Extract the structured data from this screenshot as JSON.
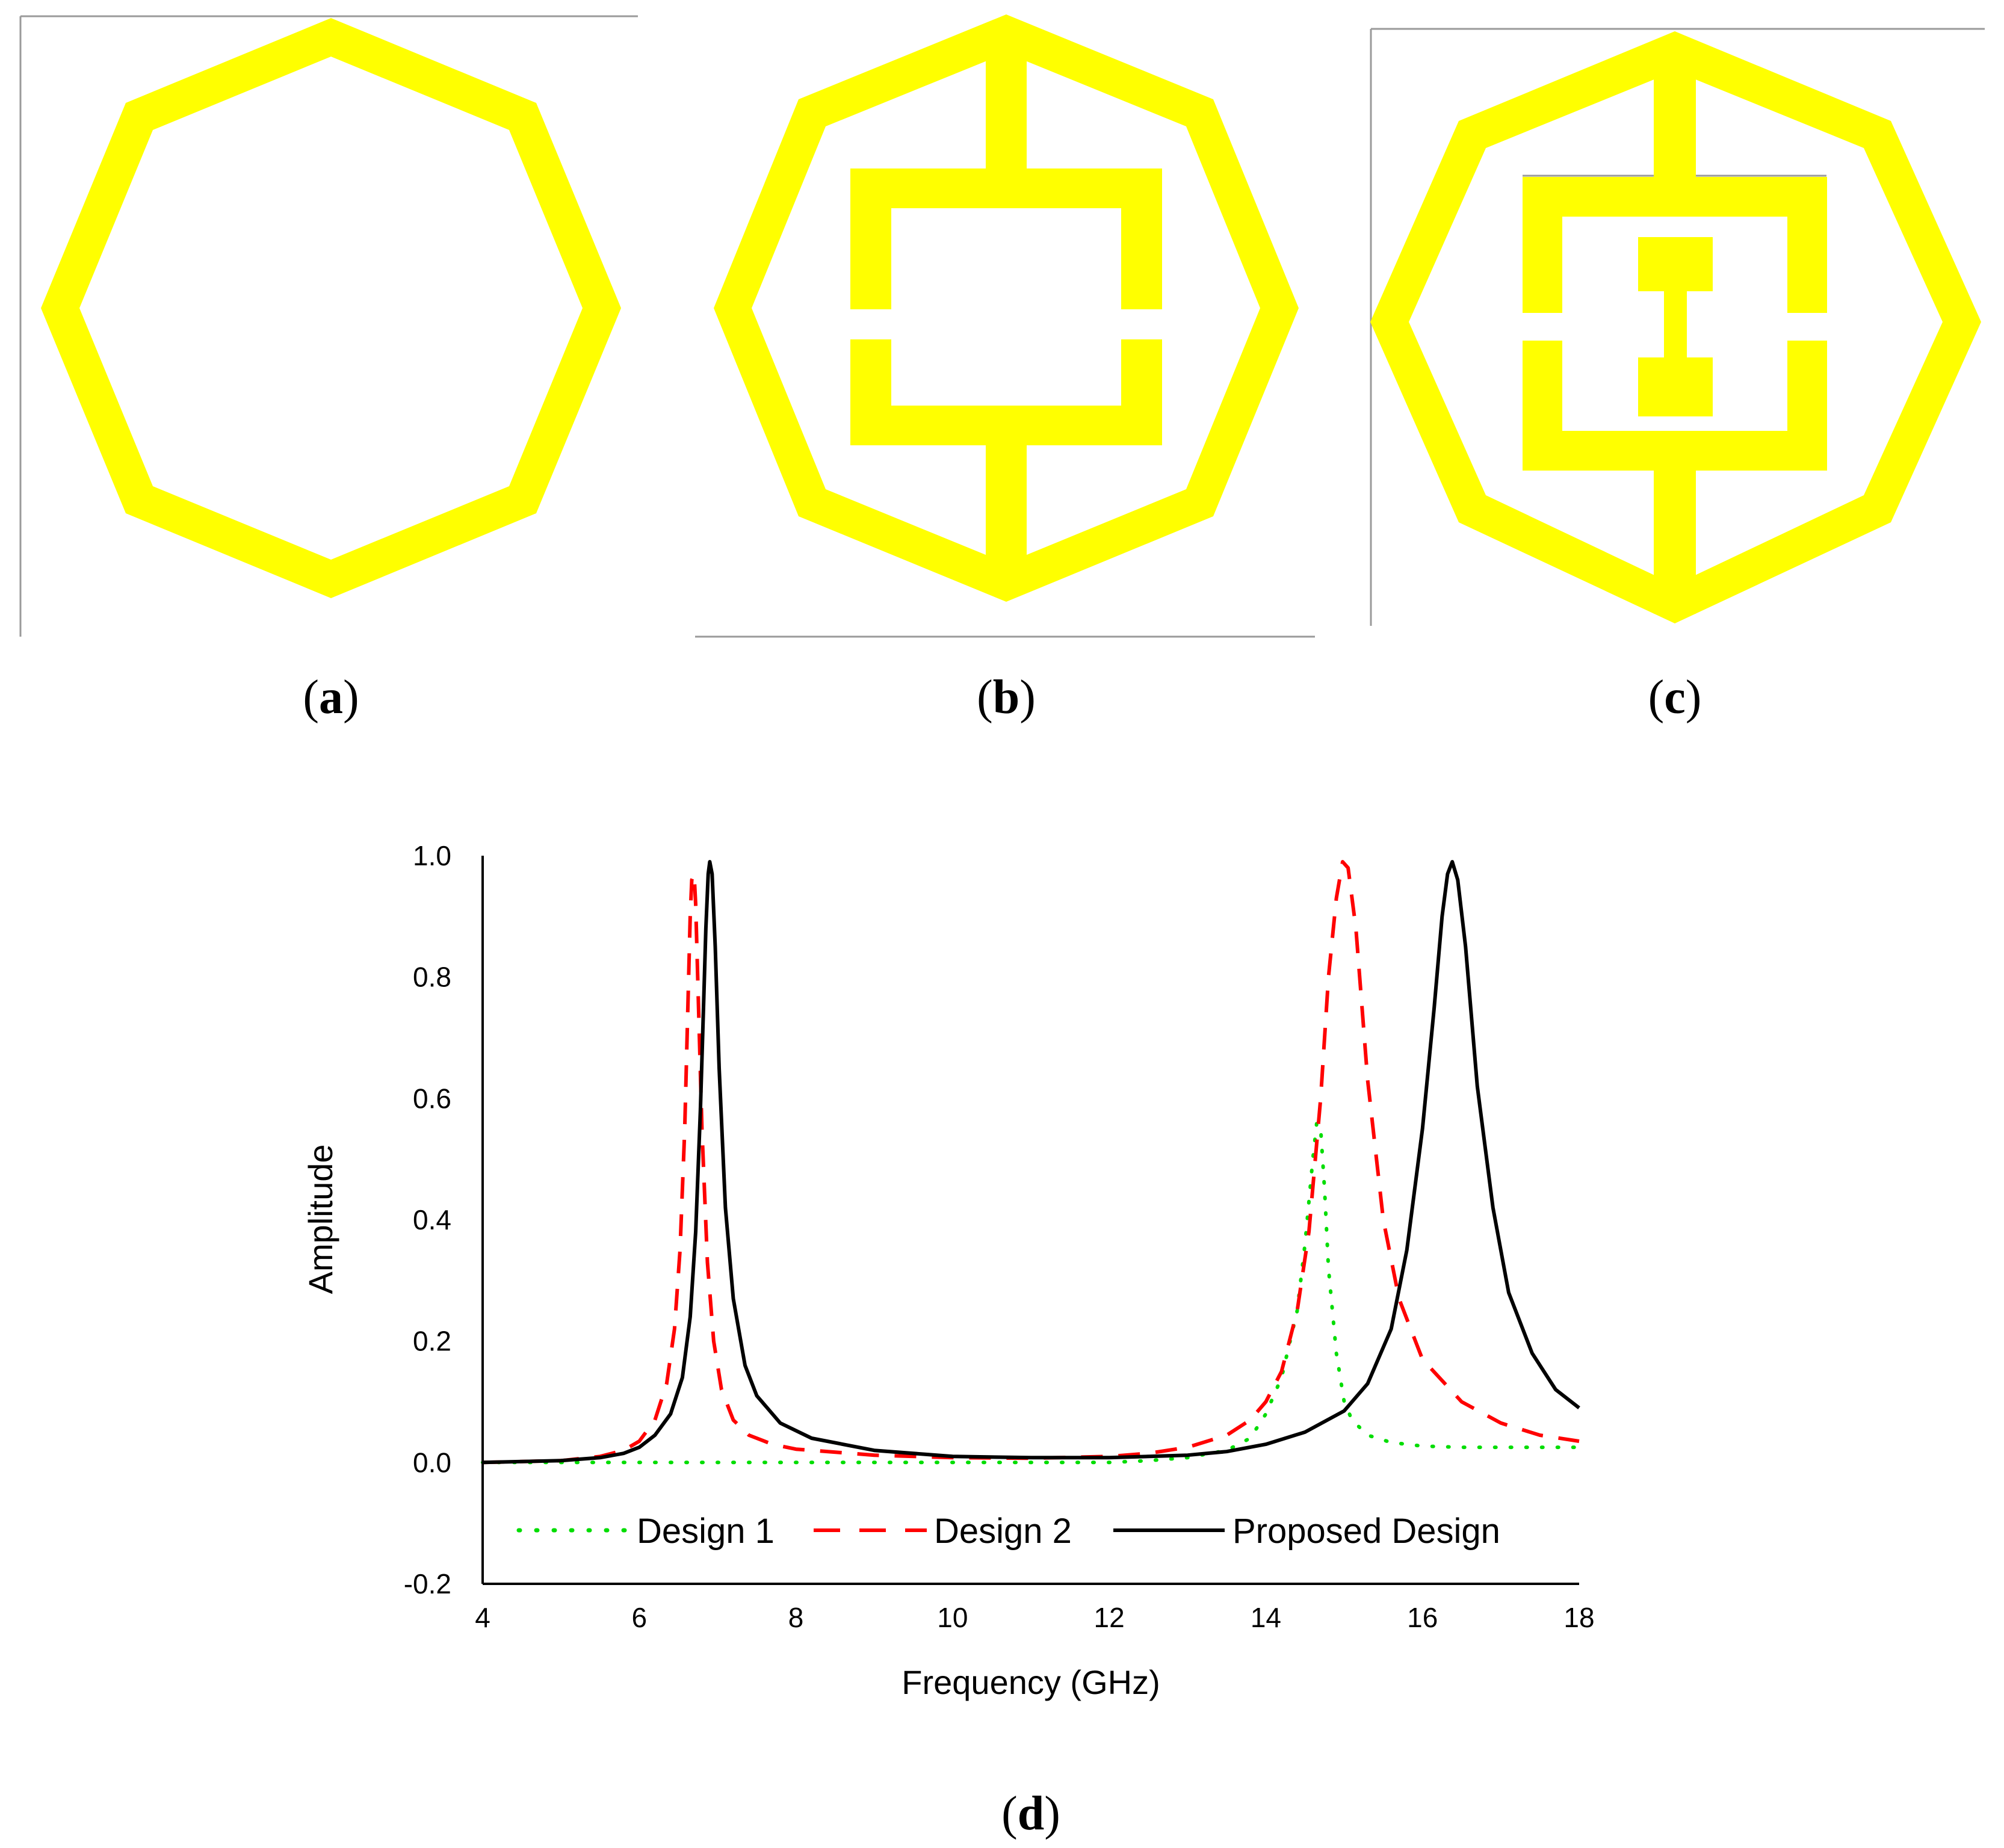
{
  "colors": {
    "resonator": "#ffff00",
    "frame_line": "#9a9a9a",
    "design_1": "#00dd00",
    "design_2": "#ff0000",
    "proposed": "#000000",
    "axis": "#000000"
  },
  "panels": [
    {
      "label": "a",
      "open": "(",
      "close": ")"
    },
    {
      "label": "b",
      "open": "(",
      "close": ")"
    },
    {
      "label": "c",
      "open": "(",
      "close": ")"
    },
    {
      "label": "d",
      "open": "(",
      "close": ")"
    }
  ],
  "chart_data": {
    "type": "line",
    "title": "",
    "xlabel": "Frequency (GHz)",
    "ylabel": "Amplitude",
    "xlim": [
      4,
      18
    ],
    "ylim": [
      -0.2,
      1.0
    ],
    "xticks": [
      4,
      6,
      8,
      10,
      12,
      14,
      16,
      18
    ],
    "yticks": [
      {
        "v": -0.2,
        "t": "-0.2"
      },
      {
        "v": 0.0,
        "t": "0.0"
      },
      {
        "v": 0.2,
        "t": "0.2"
      },
      {
        "v": 0.4,
        "t": "0.4"
      },
      {
        "v": 0.6,
        "t": "0.6"
      },
      {
        "v": 0.8,
        "t": "0.8"
      },
      {
        "v": 1.0,
        "t": "1.0"
      }
    ],
    "grid": false,
    "legend_position": "bottom-inside",
    "series": [
      {
        "name": "Design 1",
        "style": "dotted",
        "x": [
          4,
          5,
          6,
          7,
          8,
          9,
          10,
          11,
          12,
          12.5,
          13,
          13.5,
          13.8,
          14.0,
          14.2,
          14.4,
          14.5,
          14.6,
          14.65,
          14.7,
          14.75,
          14.8,
          14.9,
          15.0,
          15.1,
          15.3,
          15.6,
          16,
          16.5,
          17,
          17.5,
          18
        ],
        "y": [
          0.0,
          0.0,
          0.0,
          0.0,
          0.0,
          0.0,
          0.0,
          0.0,
          0.0,
          0.003,
          0.008,
          0.02,
          0.04,
          0.08,
          0.14,
          0.25,
          0.36,
          0.5,
          0.56,
          0.55,
          0.45,
          0.32,
          0.18,
          0.1,
          0.07,
          0.045,
          0.033,
          0.027,
          0.025,
          0.025,
          0.025,
          0.025
        ]
      },
      {
        "name": "Design 2",
        "style": "dashed",
        "x": [
          4,
          5,
          5.5,
          5.8,
          6.0,
          6.2,
          6.35,
          6.45,
          6.52,
          6.58,
          6.62,
          6.65,
          6.67,
          6.7,
          6.72,
          6.75,
          6.8,
          6.87,
          6.95,
          7.05,
          7.2,
          7.4,
          7.7,
          8,
          9,
          10,
          11,
          12,
          12.5,
          13,
          13.5,
          13.8,
          14.0,
          14.2,
          14.4,
          14.55,
          14.7,
          14.8,
          14.9,
          14.98,
          15.05,
          15.15,
          15.3,
          15.5,
          15.7,
          16,
          16.5,
          17,
          17.5,
          18
        ],
        "y": [
          0.0,
          0.003,
          0.01,
          0.02,
          0.035,
          0.07,
          0.13,
          0.22,
          0.35,
          0.55,
          0.75,
          0.9,
          0.96,
          0.97,
          0.92,
          0.78,
          0.55,
          0.33,
          0.2,
          0.12,
          0.07,
          0.045,
          0.03,
          0.022,
          0.012,
          0.008,
          0.007,
          0.01,
          0.015,
          0.025,
          0.045,
          0.07,
          0.1,
          0.15,
          0.25,
          0.38,
          0.6,
          0.8,
          0.93,
          0.99,
          0.98,
          0.88,
          0.63,
          0.4,
          0.27,
          0.17,
          0.1,
          0.065,
          0.045,
          0.035
        ]
      },
      {
        "name": "Proposed Design",
        "style": "solid",
        "x": [
          4,
          5,
          5.5,
          5.8,
          6.0,
          6.2,
          6.4,
          6.55,
          6.65,
          6.72,
          6.78,
          6.82,
          6.85,
          6.88,
          6.9,
          6.93,
          6.97,
          7.02,
          7.1,
          7.2,
          7.35,
          7.5,
          7.8,
          8.2,
          9,
          10,
          11,
          12,
          13,
          13.5,
          14,
          14.5,
          15.0,
          15.3,
          15.6,
          15.8,
          16.0,
          16.15,
          16.25,
          16.32,
          16.38,
          16.45,
          16.55,
          16.7,
          16.9,
          17.1,
          17.4,
          17.7,
          18
        ],
        "y": [
          0.0,
          0.003,
          0.008,
          0.015,
          0.025,
          0.045,
          0.08,
          0.14,
          0.24,
          0.38,
          0.58,
          0.75,
          0.88,
          0.97,
          0.99,
          0.97,
          0.85,
          0.65,
          0.42,
          0.27,
          0.16,
          0.11,
          0.065,
          0.04,
          0.02,
          0.01,
          0.008,
          0.008,
          0.012,
          0.018,
          0.03,
          0.05,
          0.085,
          0.13,
          0.22,
          0.35,
          0.55,
          0.75,
          0.9,
          0.97,
          0.99,
          0.96,
          0.85,
          0.62,
          0.42,
          0.28,
          0.18,
          0.12,
          0.09
        ]
      }
    ]
  }
}
